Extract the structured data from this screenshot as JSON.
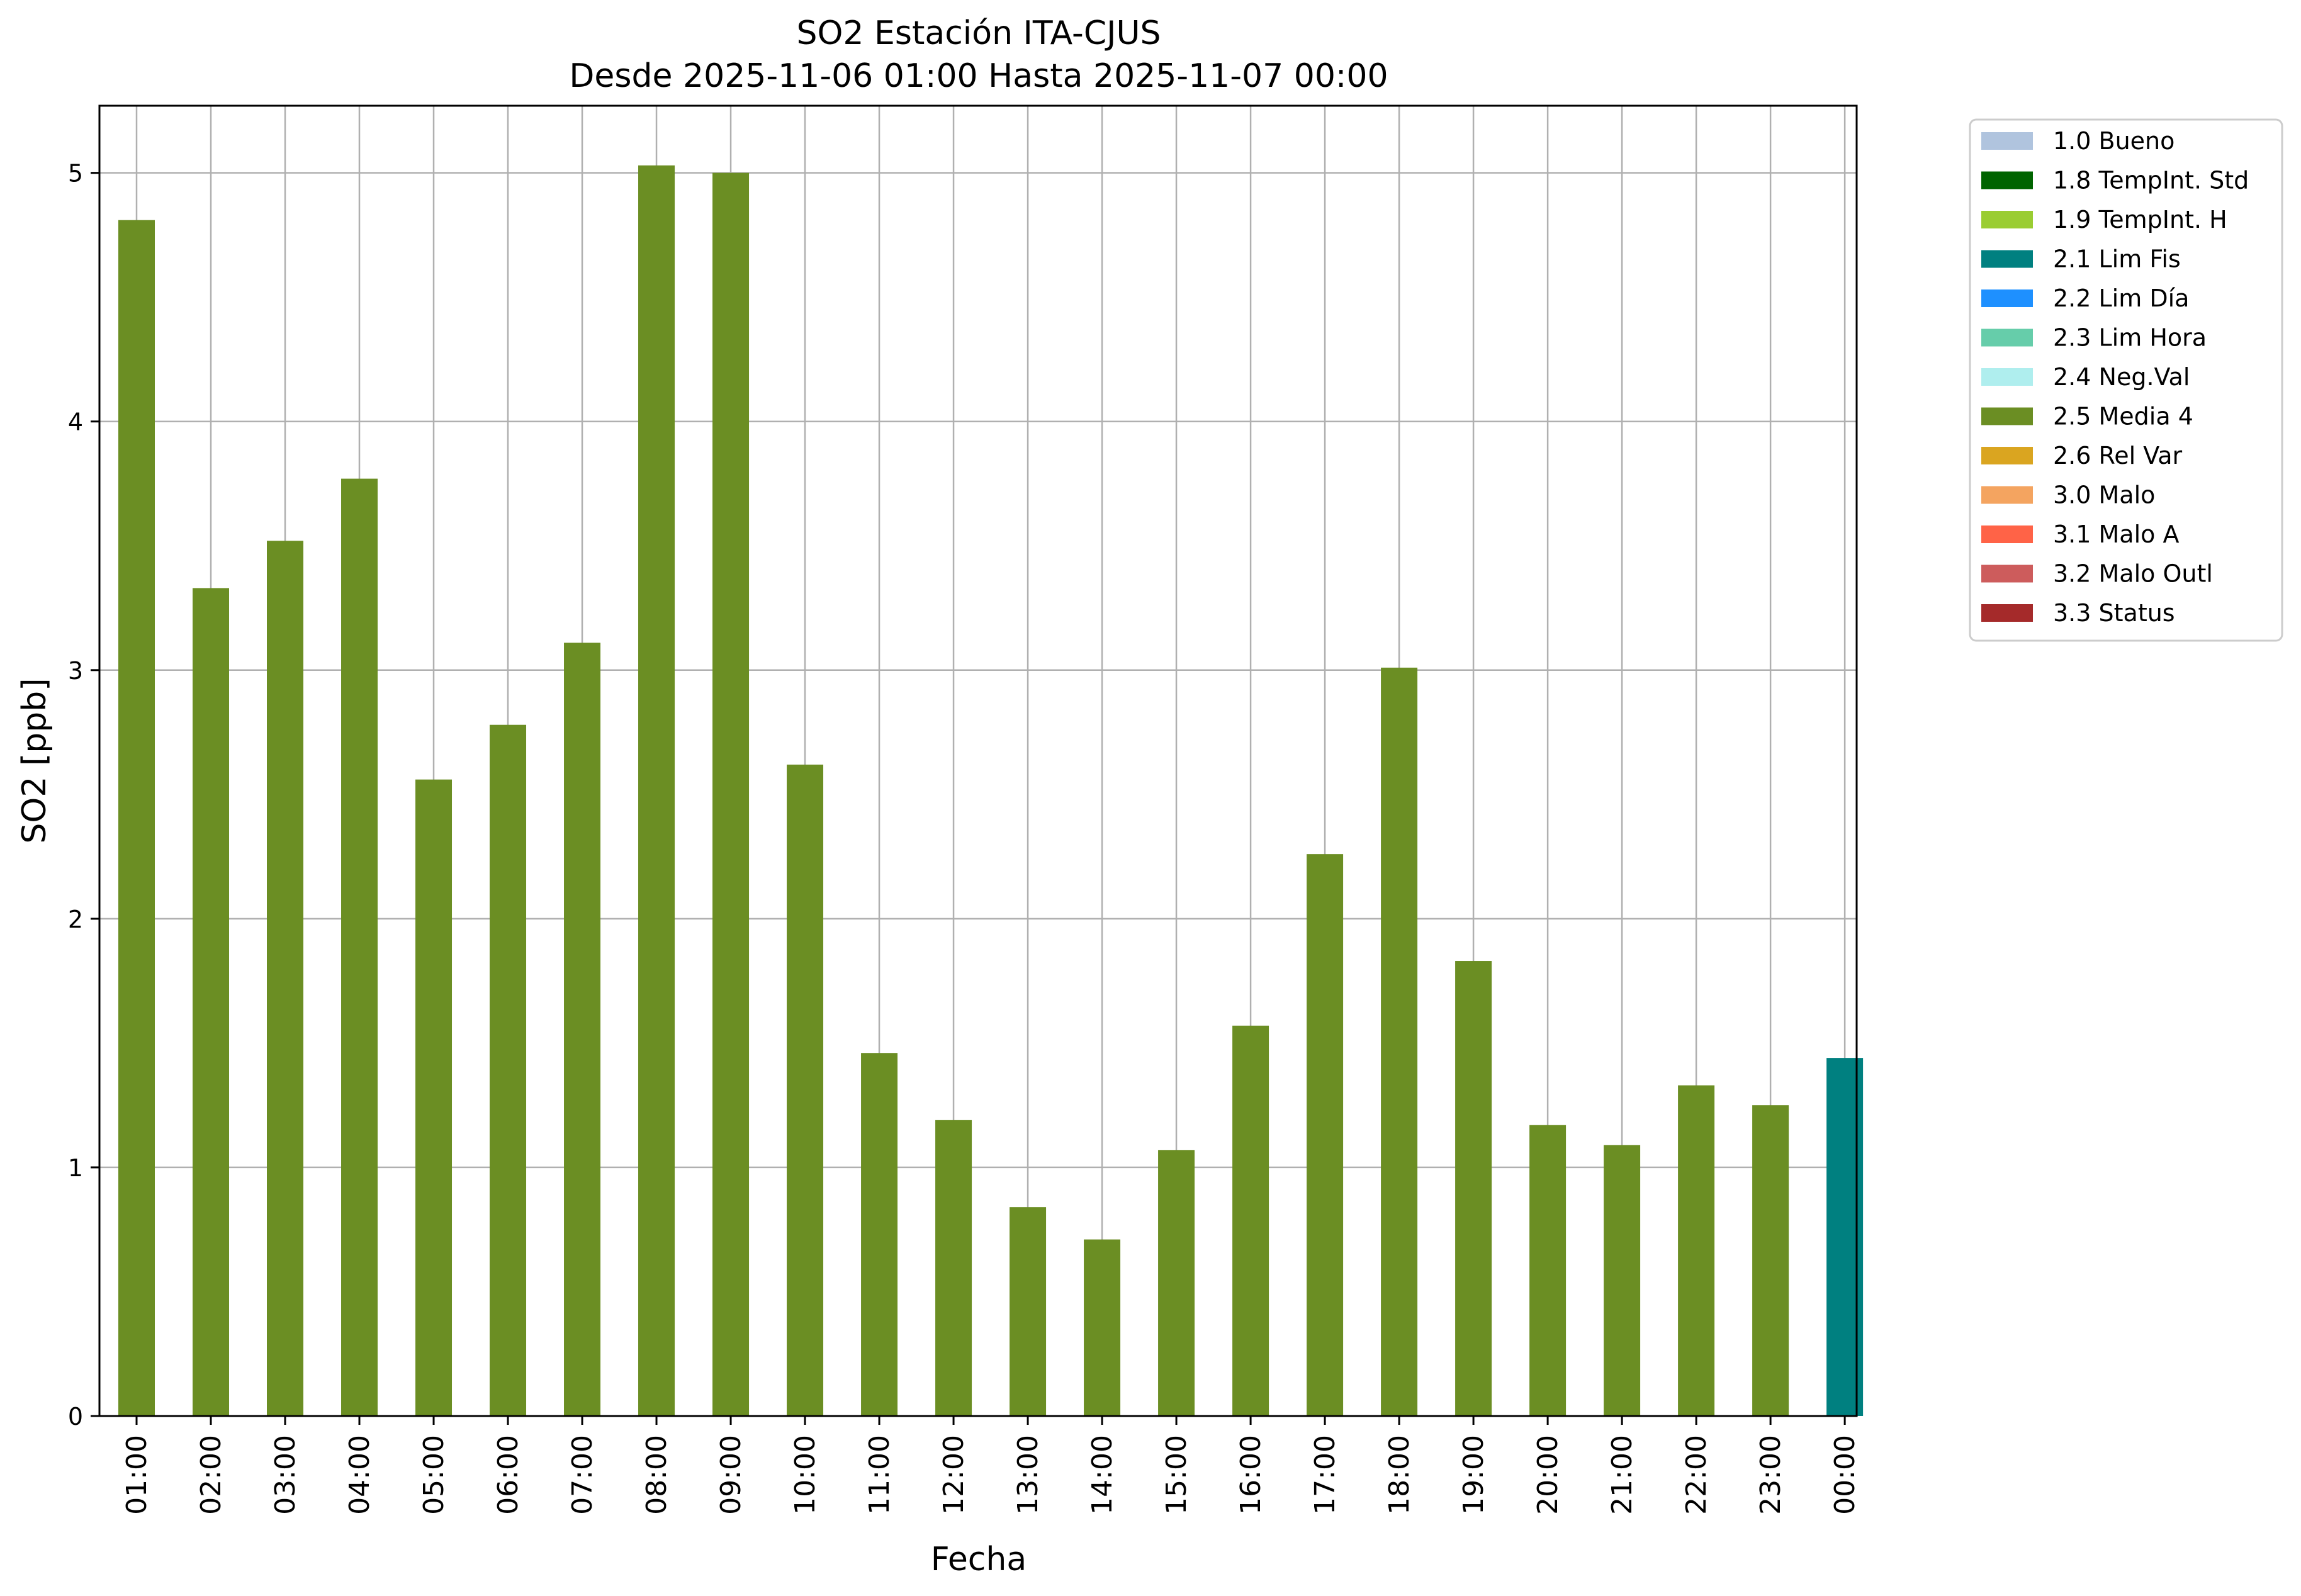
{
  "chart_data": {
    "type": "bar",
    "title": "SO2 Estación ITA-CJUS",
    "subtitle": "Desde 2025-11-06 01:00 Hasta 2025-11-07 00:00",
    "xlabel": "Fecha",
    "ylabel": "SO2 [ppb]",
    "ylim": [
      0,
      5.27
    ],
    "yticks": [
      "0",
      "1",
      "2",
      "3",
      "4",
      "5"
    ],
    "grid": true,
    "legend_position": "outside-top-right",
    "categories": [
      "01:00",
      "02:00",
      "03:00",
      "04:00",
      "05:00",
      "06:00",
      "07:00",
      "08:00",
      "09:00",
      "10:00",
      "11:00",
      "12:00",
      "13:00",
      "14:00",
      "15:00",
      "16:00",
      "17:00",
      "18:00",
      "19:00",
      "20:00",
      "21:00",
      "22:00",
      "23:00",
      "00:00"
    ],
    "values": [
      4.81,
      3.33,
      3.52,
      3.77,
      2.56,
      2.78,
      3.11,
      5.03,
      5.0,
      2.62,
      1.46,
      1.19,
      0.84,
      0.71,
      1.07,
      1.57,
      2.26,
      3.01,
      1.83,
      1.17,
      1.09,
      1.33,
      1.25,
      1.44
    ],
    "bar_flags": [
      "2.5 Media 4",
      "2.5 Media 4",
      "2.5 Media 4",
      "2.5 Media 4",
      "2.5 Media 4",
      "2.5 Media 4",
      "2.5 Media 4",
      "2.5 Media 4",
      "2.5 Media 4",
      "2.5 Media 4",
      "2.5 Media 4",
      "2.5 Media 4",
      "2.5 Media 4",
      "2.5 Media 4",
      "2.5 Media 4",
      "2.5 Media 4",
      "2.5 Media 4",
      "2.5 Media 4",
      "2.5 Media 4",
      "2.5 Media 4",
      "2.5 Media 4",
      "2.5 Media 4",
      "2.5 Media 4",
      "2.1 Lim Fis"
    ],
    "legend": [
      {
        "label": "1.0 Bueno",
        "color": "#b0c4de"
      },
      {
        "label": "1.8 TempInt. Std",
        "color": "#006400"
      },
      {
        "label": "1.9 TempInt. H",
        "color": "#9acd32"
      },
      {
        "label": "2.1 Lim Fis",
        "color": "#008080"
      },
      {
        "label": "2.2 Lim Día",
        "color": "#1e90ff"
      },
      {
        "label": "2.3 Lim Hora",
        "color": "#66cdaa"
      },
      {
        "label": "2.4 Neg.Val",
        "color": "#afeeee"
      },
      {
        "label": "2.5 Media 4",
        "color": "#6b8e23"
      },
      {
        "label": "2.6 Rel Var",
        "color": "#daa520"
      },
      {
        "label": "3.0 Malo",
        "color": "#f4a460"
      },
      {
        "label": "3.1 Malo A",
        "color": "#ff6347"
      },
      {
        "label": "3.2 Malo Outl",
        "color": "#cd5c5c"
      },
      {
        "label": "3.3 Status",
        "color": "#a52a2a"
      }
    ]
  }
}
